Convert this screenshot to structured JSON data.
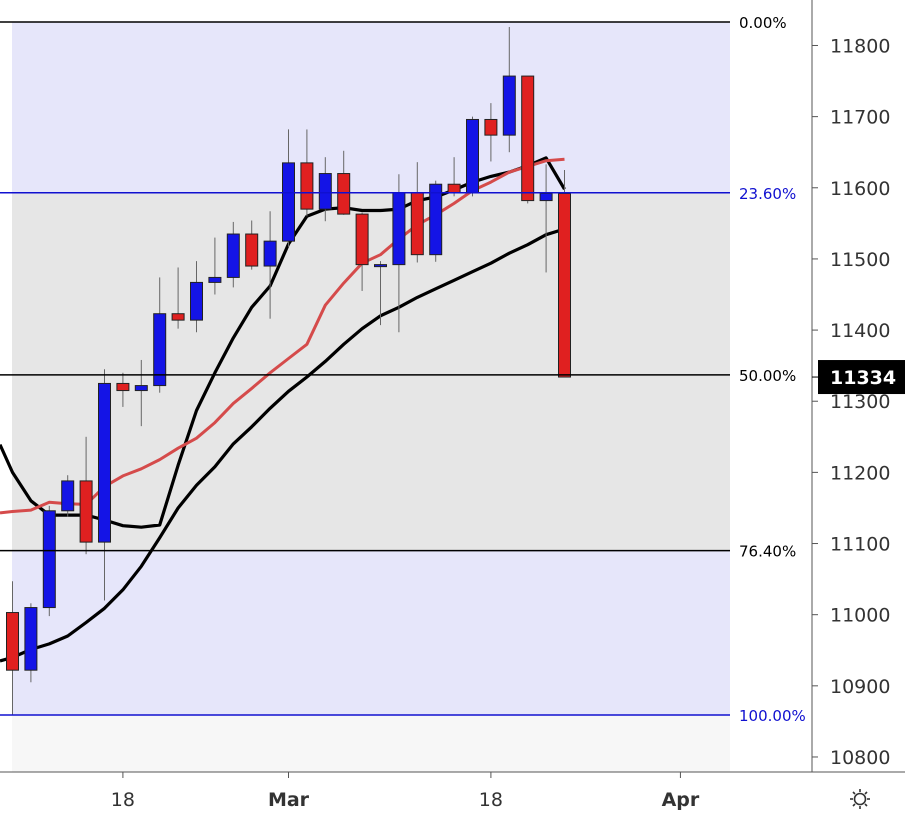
{
  "chart_data": {
    "type": "candlestick",
    "y_range": [
      10770,
      11833
    ],
    "x_ticks": [
      "18",
      "Mar",
      "18",
      "Apr"
    ],
    "y_ticks": [
      "10800",
      "10900",
      "11000",
      "11100",
      "11200",
      "11300",
      "11400",
      "11500",
      "11600",
      "11700",
      "11800"
    ],
    "current_price": "11334",
    "fib_levels": [
      {
        "label": "0.00%",
        "value": 11833,
        "color": "#000000"
      },
      {
        "label": "23.60%",
        "value": 11593,
        "color": "#1010d0"
      },
      {
        "label": "50.00%",
        "value": 11337,
        "color": "#000000"
      },
      {
        "label": "76.40%",
        "value": 11090,
        "color": "#000000"
      },
      {
        "label": "100.00%",
        "value": 10859,
        "color": "#1010d0"
      }
    ],
    "candles": [
      {
        "open": 11003,
        "high": 11047,
        "low": 10859,
        "close": 10922
      },
      {
        "open": 10922,
        "high": 11016,
        "low": 10905,
        "close": 11010
      },
      {
        "open": 11010,
        "high": 11153,
        "low": 10998,
        "close": 11146
      },
      {
        "open": 11146,
        "high": 11196,
        "low": 11138,
        "close": 11188
      },
      {
        "open": 11188,
        "high": 11250,
        "low": 11085,
        "close": 11102
      },
      {
        "open": 11102,
        "high": 11345,
        "low": 11020,
        "close": 11325
      },
      {
        "open": 11325,
        "high": 11340,
        "low": 11292,
        "close": 11315
      },
      {
        "open": 11315,
        "high": 11358,
        "low": 11265,
        "close": 11322
      },
      {
        "open": 11322,
        "high": 11474,
        "low": 11312,
        "close": 11423
      },
      {
        "open": 11423,
        "high": 11488,
        "low": 11402,
        "close": 11414
      },
      {
        "open": 11414,
        "high": 11497,
        "low": 11397,
        "close": 11467
      },
      {
        "open": 11467,
        "high": 11530,
        "low": 11450,
        "close": 11474
      },
      {
        "open": 11474,
        "high": 11552,
        "low": 11460,
        "close": 11535
      },
      {
        "open": 11535,
        "high": 11554,
        "low": 11485,
        "close": 11490
      },
      {
        "open": 11490,
        "high": 11567,
        "low": 11416,
        "close": 11525
      },
      {
        "open": 11525,
        "high": 11682,
        "low": 11517,
        "close": 11635
      },
      {
        "open": 11635,
        "high": 11682,
        "low": 11560,
        "close": 11570
      },
      {
        "open": 11570,
        "high": 11643,
        "low": 11553,
        "close": 11620
      },
      {
        "open": 11620,
        "high": 11652,
        "low": 11562,
        "close": 11563
      },
      {
        "open": 11563,
        "high": 11565,
        "low": 11455,
        "close": 11492
      },
      {
        "open": 11492,
        "high": 11497,
        "low": 11407,
        "close": 11492
      },
      {
        "open": 11492,
        "high": 11619,
        "low": 11397,
        "close": 11593
      },
      {
        "open": 11593,
        "high": 11636,
        "low": 11495,
        "close": 11506
      },
      {
        "open": 11506,
        "high": 11610,
        "low": 11496,
        "close": 11605
      },
      {
        "open": 11605,
        "high": 11643,
        "low": 11588,
        "close": 11593
      },
      {
        "open": 11593,
        "high": 11700,
        "low": 11588,
        "close": 11696
      },
      {
        "open": 11696,
        "high": 11719,
        "low": 11637,
        "close": 11674
      },
      {
        "open": 11674,
        "high": 11826,
        "low": 11650,
        "close": 11757
      },
      {
        "open": 11757,
        "high": 11757,
        "low": 11578,
        "close": 11582
      },
      {
        "open": 11582,
        "high": 11633,
        "low": 11481,
        "close": 11592
      },
      {
        "open": 11592,
        "high": 11625,
        "low": 11334,
        "close": 11334
      }
    ],
    "series": [
      {
        "color": "#000000",
        "points": [
          [
            -0.8,
            11239
          ],
          [
            0,
            11200
          ],
          [
            1,
            11160
          ],
          [
            2,
            11140
          ],
          [
            3,
            11140
          ],
          [
            4,
            11140
          ],
          [
            5,
            11133
          ],
          [
            6,
            11125
          ],
          [
            7,
            11123
          ],
          [
            8,
            11126
          ],
          [
            9,
            11210
          ],
          [
            10,
            11287
          ],
          [
            11,
            11340
          ],
          [
            12,
            11389
          ],
          [
            13,
            11432
          ],
          [
            14,
            11462
          ],
          [
            15,
            11521
          ],
          [
            16,
            11560
          ],
          [
            17,
            11570
          ],
          [
            18,
            11572
          ],
          [
            19,
            11568
          ],
          [
            20,
            11568
          ],
          [
            21,
            11570
          ],
          [
            22,
            11582
          ],
          [
            23,
            11587
          ],
          [
            24,
            11597
          ],
          [
            25,
            11608
          ],
          [
            26,
            11616
          ],
          [
            27,
            11622
          ],
          [
            28,
            11631
          ],
          [
            29,
            11642
          ],
          [
            30,
            11598
          ]
        ]
      },
      {
        "color": "#d54b4b",
        "points": [
          [
            -0.8,
            11143
          ],
          [
            0,
            11145
          ],
          [
            1,
            11147
          ],
          [
            2,
            11158
          ],
          [
            3,
            11156
          ],
          [
            4,
            11155
          ],
          [
            5,
            11180
          ],
          [
            6,
            11195
          ],
          [
            7,
            11205
          ],
          [
            8,
            11218
          ],
          [
            9,
            11234
          ],
          [
            10,
            11248
          ],
          [
            11,
            11270
          ],
          [
            12,
            11297
          ],
          [
            13,
            11318
          ],
          [
            14,
            11340
          ],
          [
            15,
            11360
          ],
          [
            16,
            11380
          ],
          [
            17,
            11435
          ],
          [
            18,
            11466
          ],
          [
            19,
            11494
          ],
          [
            20,
            11506
          ],
          [
            21,
            11528
          ],
          [
            22,
            11548
          ],
          [
            23,
            11562
          ],
          [
            24,
            11578
          ],
          [
            25,
            11596
          ],
          [
            26,
            11608
          ],
          [
            27,
            11622
          ],
          [
            28,
            11630
          ],
          [
            29,
            11638
          ],
          [
            30,
            11640
          ]
        ]
      },
      {
        "color": "#000000",
        "points": [
          [
            -0.8,
            10935
          ],
          [
            0,
            10940
          ],
          [
            1,
            10951
          ],
          [
            2,
            10959
          ],
          [
            3,
            10970
          ],
          [
            4,
            10989
          ],
          [
            5,
            11009
          ],
          [
            6,
            11035
          ],
          [
            7,
            11068
          ],
          [
            8,
            11108
          ],
          [
            9,
            11150
          ],
          [
            10,
            11182
          ],
          [
            11,
            11208
          ],
          [
            12,
            11240
          ],
          [
            13,
            11264
          ],
          [
            14,
            11290
          ],
          [
            15,
            11314
          ],
          [
            16,
            11334
          ],
          [
            17,
            11356
          ],
          [
            18,
            11380
          ],
          [
            19,
            11402
          ],
          [
            20,
            11420
          ],
          [
            21,
            11432
          ],
          [
            22,
            11446
          ],
          [
            23,
            11458
          ],
          [
            24,
            11470
          ],
          [
            25,
            11482
          ],
          [
            26,
            11494
          ],
          [
            27,
            11508
          ],
          [
            28,
            11520
          ],
          [
            29,
            11534
          ],
          [
            30,
            11542
          ]
        ]
      }
    ]
  }
}
